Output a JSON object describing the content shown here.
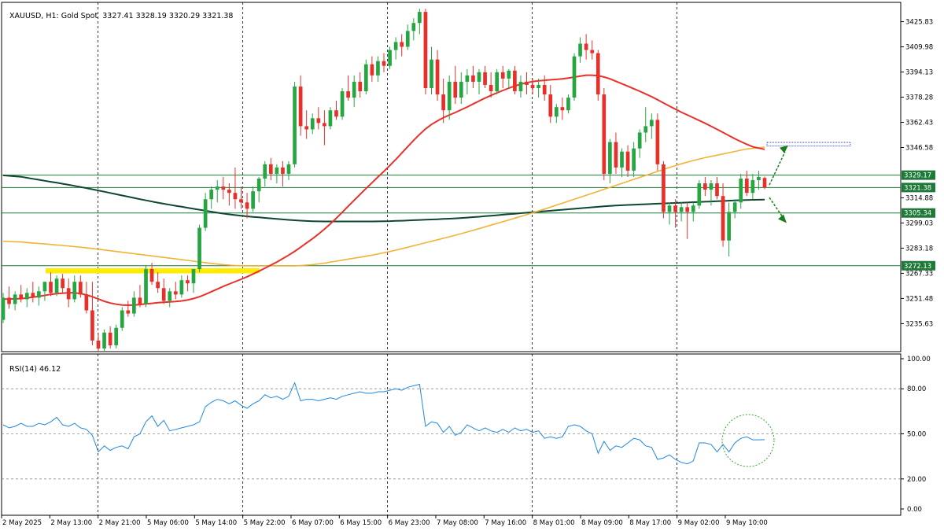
{
  "header": {
    "symbol": "XAUUSD, H1: Gold Spot",
    "ohlc": "3327.41 3328.19 3320.29 3321.38"
  },
  "rsi_header": {
    "label": "RSI(14)",
    "value": "46.12"
  },
  "colors": {
    "bull": "#26a641",
    "bear": "#e8302a",
    "ma_fast": "#e8312a",
    "ma_mid": "#f2b233",
    "ma_slow": "#0e4730",
    "hline": "#1f7a3a",
    "rsi_line": "#1e88e5",
    "zone": "#ffeb00",
    "projection": "#1a7f1a"
  },
  "chart_data": [
    {
      "type": "candlestick",
      "title": "XAUUSD, H1: Gold Spot",
      "ylim": [
        3218,
        3438
      ],
      "y_ticks": [
        "3425.83",
        "3409.98",
        "3394.13",
        "3378.28",
        "3362.43",
        "3346.58",
        "3314.88",
        "3299.03",
        "3283.18",
        "3267.33",
        "3251.48",
        "3235.63"
      ],
      "x_ticks": [
        "2 May 2025",
        "2 May 13:00",
        "2 May 21:00",
        "5 May 06:00",
        "5 May 14:00",
        "5 May 22:00",
        "6 May 07:00",
        "6 May 15:00",
        "6 May 23:00",
        "7 May 08:00",
        "7 May 16:00",
        "8 May 01:00",
        "8 May 09:00",
        "8 May 17:00",
        "9 May 02:00",
        "9 May 10:00"
      ],
      "price_levels": [
        {
          "label": "3329.17",
          "value": 3329.17
        },
        {
          "label": "3321.38",
          "value": 3321.38
        },
        {
          "label": "3305.34",
          "value": 3305.34
        },
        {
          "label": "3272.13",
          "value": 3272.13
        }
      ],
      "target_zones": [
        {
          "name": "support",
          "from": 3267.3,
          "to": 3270.5
        },
        {
          "name": "target",
          "from": 3347.5,
          "to": 3349.8
        }
      ],
      "candles": [
        [
          3238,
          3255,
          3236,
          3252
        ],
        [
          3252,
          3259,
          3245,
          3248
        ],
        [
          3248,
          3256,
          3244,
          3254
        ],
        [
          3254,
          3260,
          3249,
          3251
        ],
        [
          3251,
          3258,
          3246,
          3255
        ],
        [
          3255,
          3262,
          3249,
          3252
        ],
        [
          3252,
          3259,
          3247,
          3256
        ],
        [
          3256,
          3262,
          3250,
          3262
        ],
        [
          3262,
          3268,
          3253,
          3255
        ],
        [
          3255,
          3266,
          3253,
          3264
        ],
        [
          3264,
          3267,
          3255,
          3258
        ],
        [
          3258,
          3264,
          3246,
          3251
        ],
        [
          3251,
          3266,
          3249,
          3262
        ],
        [
          3262,
          3266,
          3252,
          3254
        ],
        [
          3254,
          3262,
          3242,
          3244
        ],
        [
          3244,
          3262,
          3222,
          3225
        ],
        [
          3225,
          3230,
          3218,
          3220
        ],
        [
          3220,
          3232,
          3218,
          3230
        ],
        [
          3230,
          3234,
          3220,
          3222
        ],
        [
          3222,
          3235,
          3220,
          3233
        ],
        [
          3233,
          3246,
          3231,
          3244
        ],
        [
          3244,
          3250,
          3240,
          3242
        ],
        [
          3242,
          3256,
          3240,
          3252
        ],
        [
          3252,
          3260,
          3246,
          3248
        ],
        [
          3248,
          3272,
          3246,
          3270
        ],
        [
          3270,
          3274,
          3260,
          3262
        ],
        [
          3262,
          3268,
          3255,
          3258
        ],
        [
          3258,
          3264,
          3248,
          3250
        ],
        [
          3250,
          3258,
          3246,
          3256
        ],
        [
          3256,
          3262,
          3251,
          3254
        ],
        [
          3254,
          3266,
          3252,
          3263
        ],
        [
          3263,
          3266,
          3256,
          3261
        ],
        [
          3261,
          3270,
          3255,
          3270
        ],
        [
          3270,
          3298,
          3268,
          3296
        ],
        [
          3296,
          3318,
          3294,
          3314
        ],
        [
          3314,
          3322,
          3308,
          3320
        ],
        [
          3320,
          3326,
          3312,
          3322
        ],
        [
          3322,
          3328,
          3314,
          3320
        ],
        [
          3320,
          3324,
          3310,
          3318
        ],
        [
          3318,
          3334,
          3308,
          3314
        ],
        [
          3314,
          3322,
          3308,
          3312
        ],
        [
          3312,
          3318,
          3302,
          3308
        ],
        [
          3308,
          3322,
          3306,
          3319
        ],
        [
          3319,
          3328,
          3312,
          3327
        ],
        [
          3327,
          3338,
          3322,
          3336
        ],
        [
          3336,
          3340,
          3326,
          3330
        ],
        [
          3330,
          3336,
          3324,
          3334
        ],
        [
          3334,
          3338,
          3322,
          3330
        ],
        [
          3330,
          3338,
          3326,
          3336
        ],
        [
          3336,
          3388,
          3334,
          3385
        ],
        [
          3385,
          3392,
          3354,
          3360
        ],
        [
          3360,
          3370,
          3352,
          3358
        ],
        [
          3358,
          3368,
          3355,
          3365
        ],
        [
          3365,
          3372,
          3358,
          3362
        ],
        [
          3362,
          3370,
          3348,
          3360
        ],
        [
          3360,
          3372,
          3358,
          3370
        ],
        [
          3370,
          3376,
          3364,
          3366
        ],
        [
          3366,
          3384,
          3364,
          3382
        ],
        [
          3382,
          3392,
          3376,
          3378
        ],
        [
          3378,
          3392,
          3372,
          3388
        ],
        [
          3388,
          3394,
          3378,
          3382
        ],
        [
          3382,
          3402,
          3380,
          3399
        ],
        [
          3399,
          3404,
          3388,
          3392
        ],
        [
          3392,
          3404,
          3388,
          3401
        ],
        [
          3401,
          3406,
          3394,
          3398
        ],
        [
          3398,
          3410,
          3396,
          3408
        ],
        [
          3408,
          3416,
          3402,
          3413
        ],
        [
          3413,
          3418,
          3404,
          3410
        ],
        [
          3410,
          3424,
          3408,
          3420
        ],
        [
          3420,
          3428,
          3414,
          3425
        ],
        [
          3425,
          3434,
          3418,
          3432
        ],
        [
          3432,
          3434,
          3380,
          3384
        ],
        [
          3384,
          3410,
          3380,
          3402
        ],
        [
          3402,
          3408,
          3376,
          3380
        ],
        [
          3380,
          3390,
          3362,
          3370
        ],
        [
          3370,
          3392,
          3364,
          3388
        ],
        [
          3388,
          3398,
          3374,
          3378
        ],
        [
          3378,
          3394,
          3374,
          3388
        ],
        [
          3388,
          3396,
          3380,
          3392
        ],
        [
          3392,
          3398,
          3384,
          3388
        ],
        [
          3388,
          3396,
          3380,
          3394
        ],
        [
          3394,
          3398,
          3384,
          3386
        ],
        [
          3386,
          3394,
          3378,
          3382
        ],
        [
          3382,
          3396,
          3380,
          3394
        ],
        [
          3394,
          3398,
          3384,
          3390
        ],
        [
          3390,
          3396,
          3384,
          3395
        ],
        [
          3395,
          3398,
          3380,
          3382
        ],
        [
          3382,
          3392,
          3378,
          3388
        ],
        [
          3388,
          3394,
          3380,
          3386
        ],
        [
          3386,
          3390,
          3380,
          3384
        ],
        [
          3384,
          3390,
          3378,
          3386
        ],
        [
          3386,
          3392,
          3376,
          3380
        ],
        [
          3380,
          3386,
          3362,
          3366
        ],
        [
          3366,
          3374,
          3362,
          3372
        ],
        [
          3372,
          3378,
          3364,
          3370
        ],
        [
          3370,
          3380,
          3368,
          3378
        ],
        [
          3378,
          3406,
          3376,
          3404
        ],
        [
          3404,
          3416,
          3400,
          3412
        ],
        [
          3412,
          3418,
          3402,
          3408
        ],
        [
          3408,
          3414,
          3402,
          3406
        ],
        [
          3406,
          3408,
          3376,
          3380
        ],
        [
          3380,
          3384,
          3326,
          3330
        ],
        [
          3330,
          3352,
          3324,
          3350
        ],
        [
          3350,
          3356,
          3330,
          3334
        ],
        [
          3334,
          3346,
          3328,
          3344
        ],
        [
          3344,
          3348,
          3328,
          3332
        ],
        [
          3332,
          3350,
          3328,
          3346
        ],
        [
          3346,
          3358,
          3340,
          3356
        ],
        [
          3356,
          3372,
          3350,
          3360
        ],
        [
          3360,
          3368,
          3352,
          3364
        ],
        [
          3364,
          3368,
          3332,
          3336
        ],
        [
          3336,
          3338,
          3302,
          3306
        ],
        [
          3306,
          3312,
          3298,
          3310
        ],
        [
          3310,
          3314,
          3296,
          3306
        ],
        [
          3306,
          3312,
          3300,
          3309
        ],
        [
          3309,
          3312,
          3289,
          3306
        ],
        [
          3306,
          3312,
          3300,
          3310
        ],
        [
          3310,
          3326,
          3308,
          3324
        ],
        [
          3324,
          3328,
          3316,
          3320
        ],
        [
          3320,
          3326,
          3310,
          3324
        ],
        [
          3324,
          3328,
          3314,
          3316
        ],
        [
          3316,
          3324,
          3284,
          3288
        ],
        [
          3288,
          3312,
          3278,
          3306
        ],
        [
          3306,
          3314,
          3302,
          3312
        ],
        [
          3312,
          3330,
          3308,
          3327
        ],
        [
          3327,
          3332,
          3316,
          3318
        ],
        [
          3318,
          3330,
          3314,
          3326
        ],
        [
          3326,
          3332,
          3320,
          3328
        ],
        [
          3327.41,
          3328.19,
          3320.29,
          3321.38
        ]
      ]
    },
    {
      "type": "line",
      "title": "RSI(14) 46.12",
      "ylim": [
        0,
        100
      ],
      "y_ticks": [
        "100.00",
        "80.00",
        "50.00",
        "20.00",
        "0.00"
      ],
      "levels": [
        80,
        50,
        20
      ],
      "values": [
        56,
        54,
        55,
        57,
        55,
        55,
        57,
        56,
        58,
        61,
        56,
        55,
        57,
        54,
        53,
        49,
        38,
        42,
        39,
        41,
        42,
        40,
        48,
        50,
        58,
        62,
        55,
        59,
        52,
        53,
        54,
        55,
        56,
        58,
        68,
        71,
        73,
        72,
        70,
        72,
        69,
        67,
        70,
        72,
        76,
        74,
        75,
        73,
        75,
        84,
        72,
        73,
        73,
        72,
        73,
        74,
        73,
        75,
        76,
        77,
        78,
        77,
        77,
        78,
        78,
        79,
        80,
        79,
        81,
        82,
        83,
        55,
        58,
        57,
        51,
        55,
        49,
        51,
        56,
        54,
        52,
        54,
        52,
        51,
        53,
        51,
        54,
        52,
        53,
        51,
        52,
        47,
        48,
        47,
        48,
        55,
        56,
        55,
        52,
        50,
        37,
        45,
        39,
        42,
        41,
        44,
        47,
        46,
        42,
        41,
        33,
        34,
        36,
        33,
        31,
        30,
        32,
        44,
        44,
        43,
        38,
        43,
        38,
        44,
        47,
        48,
        46,
        46,
        46.12
      ]
    }
  ]
}
